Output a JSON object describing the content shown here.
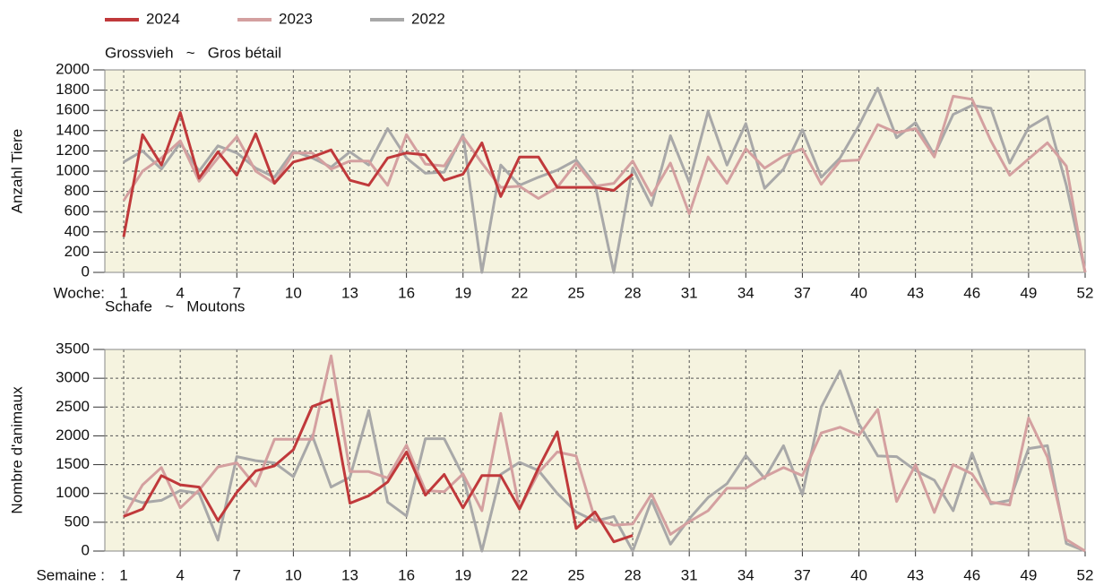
{
  "chart_data": [
    {
      "type": "line",
      "title": "Grossvieh   ~   Gros bétail",
      "ylabel": "Anzahl Tiere",
      "xlabel": "Woche:",
      "x": [
        1,
        2,
        3,
        4,
        5,
        6,
        7,
        8,
        9,
        10,
        11,
        12,
        13,
        14,
        15,
        16,
        17,
        18,
        19,
        20,
        21,
        22,
        23,
        24,
        25,
        26,
        27,
        28,
        29,
        30,
        31,
        32,
        33,
        34,
        35,
        36,
        37,
        38,
        39,
        40,
        41,
        42,
        43,
        44,
        45,
        46,
        47,
        48,
        49,
        50,
        51,
        52
      ],
      "xlim": [
        0,
        52
      ],
      "xticks": [
        1,
        4,
        7,
        10,
        13,
        16,
        19,
        22,
        25,
        28,
        31,
        34,
        37,
        40,
        43,
        46,
        49,
        52
      ],
      "ylim": [
        0,
        2000
      ],
      "yticks": [
        0,
        200,
        400,
        600,
        800,
        1000,
        1200,
        1400,
        1600,
        1800,
        2000
      ],
      "grid": true,
      "series": [
        {
          "name": "2024",
          "color": "#c0393b",
          "values": [
            350,
            1360,
            1060,
            1580,
            930,
            1190,
            960,
            1370,
            880,
            1090,
            1140,
            1210,
            910,
            860,
            1130,
            1180,
            1160,
            910,
            970,
            1280,
            750,
            1140,
            1140,
            840,
            840,
            840,
            810,
            970,
            null,
            null,
            null,
            null,
            null,
            null,
            null,
            null,
            null,
            null,
            null,
            null,
            null,
            null,
            null,
            null,
            null,
            null,
            null,
            null,
            null,
            null,
            null,
            null
          ]
        },
        {
          "name": "2023",
          "color": "#d4a0a0",
          "values": [
            710,
            1000,
            1130,
            1300,
            900,
            1130,
            1340,
            1000,
            880,
            1180,
            1180,
            1020,
            1100,
            1100,
            860,
            1360,
            1070,
            1050,
            1340,
            1080,
            840,
            850,
            730,
            840,
            1080,
            850,
            880,
            1100,
            760,
            1080,
            580,
            1140,
            880,
            1220,
            1030,
            1150,
            1220,
            870,
            1100,
            1110,
            1460,
            1380,
            1420,
            1140,
            1740,
            1710,
            1300,
            960,
            1120,
            1280,
            1050,
            0
          ]
        },
        {
          "name": "2022",
          "color": "#a8a8a8",
          "values": [
            1090,
            1200,
            1020,
            1280,
            1000,
            1250,
            1180,
            1030,
            940,
            1200,
            1130,
            1040,
            1190,
            1060,
            1420,
            1130,
            980,
            990,
            1360,
            0,
            1060,
            860,
            940,
            1010,
            1110,
            870,
            0,
            1030,
            660,
            1350,
            890,
            1590,
            1060,
            1470,
            830,
            1020,
            1410,
            940,
            1130,
            1450,
            1820,
            1330,
            1480,
            1160,
            1560,
            1650,
            1620,
            1080,
            1430,
            1540,
            860,
            0
          ]
        }
      ]
    },
    {
      "type": "line",
      "title": "Schafe   ~   Moutons",
      "ylabel": "Nombre d'animaux",
      "xlabel": "Semaine :",
      "x": [
        1,
        2,
        3,
        4,
        5,
        6,
        7,
        8,
        9,
        10,
        11,
        12,
        13,
        14,
        15,
        16,
        17,
        18,
        19,
        20,
        21,
        22,
        23,
        24,
        25,
        26,
        27,
        28,
        29,
        30,
        31,
        32,
        33,
        34,
        35,
        36,
        37,
        38,
        39,
        40,
        41,
        42,
        43,
        44,
        45,
        46,
        47,
        48,
        49,
        50,
        51,
        52
      ],
      "xlim": [
        0,
        52
      ],
      "xticks": [
        1,
        4,
        7,
        10,
        13,
        16,
        19,
        22,
        25,
        28,
        31,
        34,
        37,
        40,
        43,
        46,
        49,
        52
      ],
      "ylim": [
        0,
        3500
      ],
      "yticks": [
        0,
        500,
        1000,
        1500,
        2000,
        2500,
        3000,
        3500
      ],
      "grid": true,
      "series": [
        {
          "color": "#c0393b",
          "values": [
            600,
            730,
            1310,
            1150,
            1110,
            530,
            1020,
            1390,
            1480,
            1760,
            2510,
            2630,
            830,
            960,
            1200,
            1720,
            970,
            1330,
            750,
            1310,
            1310,
            730,
            1440,
            2070,
            390,
            680,
            160,
            270,
            null,
            null,
            null,
            null,
            null,
            null,
            null,
            null,
            null,
            null,
            null,
            null,
            null,
            null,
            null,
            null,
            null,
            null,
            null,
            null,
            null,
            null,
            null,
            null
          ]
        },
        {
          "color": "#d4a0a0",
          "values": [
            590,
            1150,
            1450,
            750,
            1060,
            1460,
            1530,
            1130,
            1940,
            1940,
            1940,
            3390,
            1380,
            1380,
            1270,
            1840,
            1050,
            1030,
            1340,
            700,
            2390,
            730,
            1360,
            1720,
            1650,
            550,
            450,
            470,
            990,
            290,
            510,
            700,
            1090,
            1090,
            1290,
            1450,
            1310,
            2050,
            2150,
            2010,
            2460,
            860,
            1500,
            670,
            1500,
            1340,
            850,
            800,
            2310,
            1630,
            200,
            0
          ]
        },
        {
          "color": "#a8a8a8",
          "values": [
            950,
            840,
            880,
            1050,
            1000,
            190,
            1640,
            1570,
            1530,
            1290,
            2010,
            1110,
            1280,
            2440,
            850,
            610,
            1950,
            1950,
            1310,
            0,
            1330,
            1540,
            1400,
            1000,
            680,
            520,
            600,
            0,
            880,
            120,
            560,
            930,
            1170,
            1660,
            1260,
            1830,
            980,
            2500,
            3130,
            2210,
            1650,
            1640,
            1400,
            1230,
            700,
            1700,
            820,
            880,
            1780,
            1830,
            130,
            0
          ]
        }
      ]
    }
  ]
}
